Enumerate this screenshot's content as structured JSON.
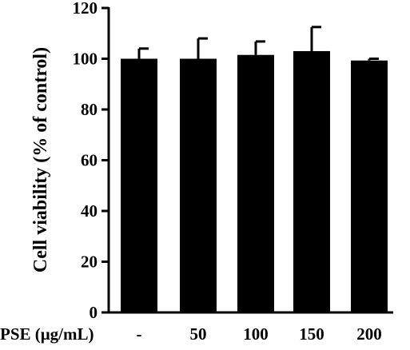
{
  "chart_data": {
    "type": "bar",
    "categories": [
      "-",
      "50",
      "100",
      "150",
      "200"
    ],
    "values": [
      100,
      100,
      101.5,
      103,
      99.3
    ],
    "error_plus": [
      4,
      8,
      5.3,
      9.5,
      0.7
    ],
    "xlabel": "PSE (μg/mL)",
    "ylabel": "Cell viability (% of control)",
    "ylim": [
      0,
      120
    ],
    "yticks": [
      0,
      20,
      40,
      60,
      80,
      100,
      120
    ],
    "grid": false,
    "bar_color": "#000000"
  }
}
